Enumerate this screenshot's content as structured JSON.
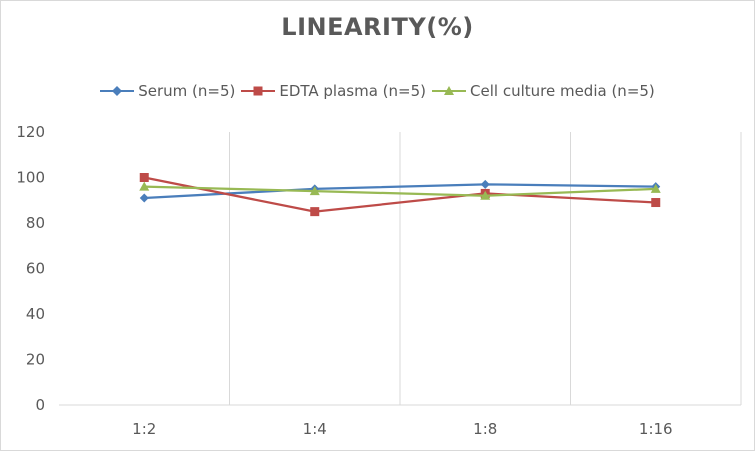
{
  "chart_data": {
    "type": "line",
    "title": "LINEARITY(%)",
    "xlabel": "",
    "ylabel": "",
    "categories": [
      "1:2",
      "1:4",
      "1:8",
      "1:16"
    ],
    "ylim": [
      0,
      120
    ],
    "yticks": [
      0,
      20,
      40,
      60,
      80,
      100,
      120
    ],
    "grid": "vertical",
    "legend_position": "top",
    "series": [
      {
        "name": "Serum (n=5)",
        "values": [
          91,
          95,
          97,
          96
        ],
        "color": "#4a7ebb",
        "marker": "diamond"
      },
      {
        "name": "EDTA plasma (n=5)",
        "values": [
          100,
          85,
          93,
          89
        ],
        "color": "#be4b48",
        "marker": "square"
      },
      {
        "name": "Cell culture media (n=5)",
        "values": [
          96,
          94,
          92,
          95
        ],
        "color": "#98b954",
        "marker": "triangle"
      }
    ]
  }
}
